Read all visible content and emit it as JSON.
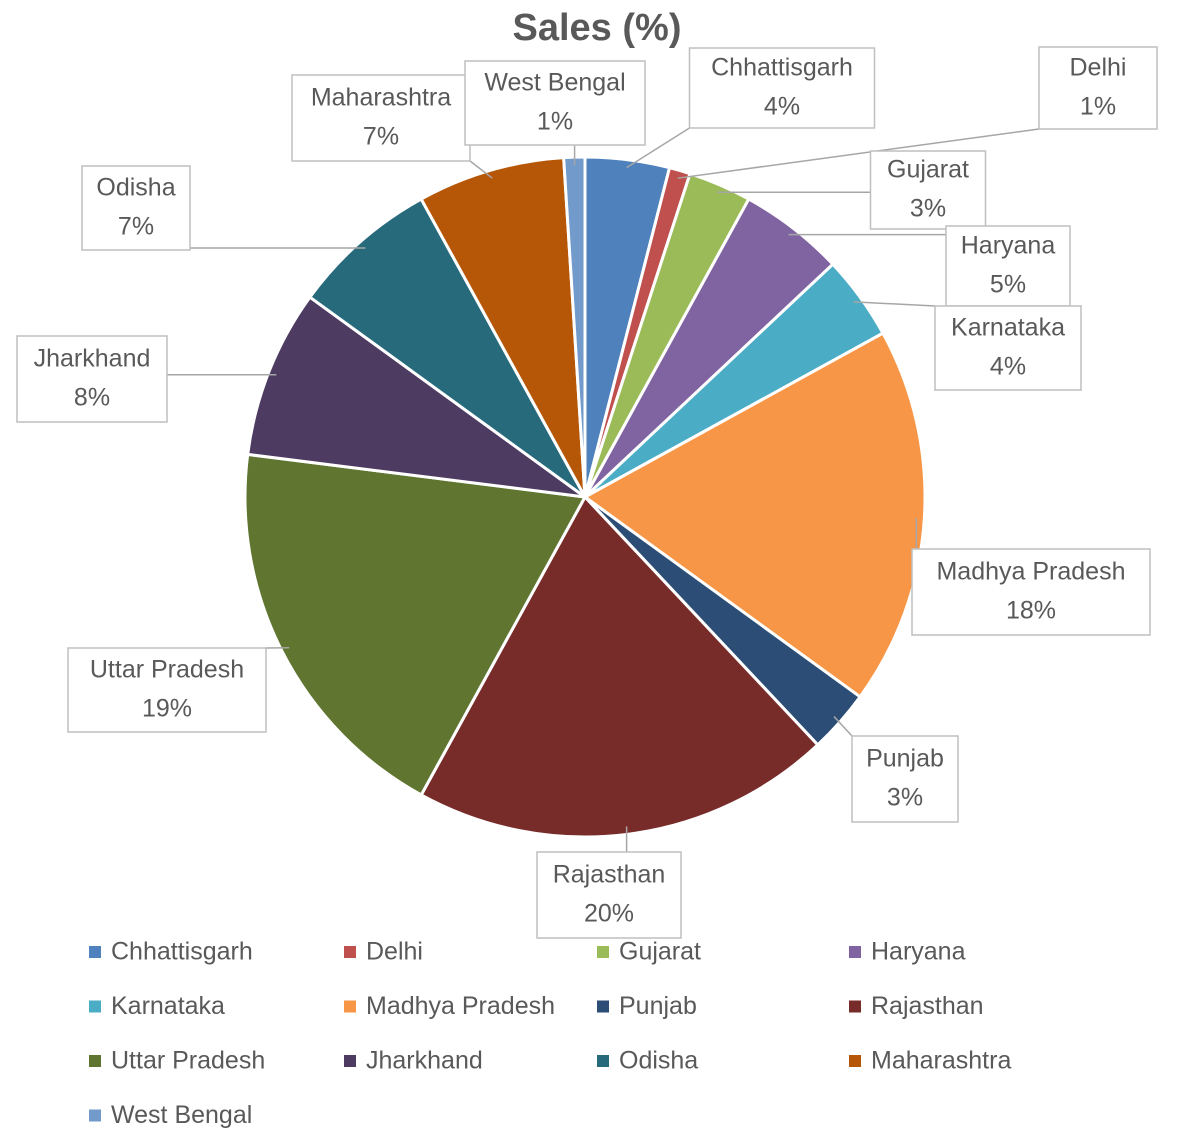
{
  "chart_data": {
    "type": "pie",
    "title": "Sales (%)",
    "categories": [
      "Chhattisgarh",
      "Delhi",
      "Gujarat",
      "Haryana",
      "Karnataka",
      "Madhya Pradesh",
      "Punjab",
      "Rajasthan",
      "Uttar Pradesh",
      "Jharkhand",
      "Odisha",
      "Maharashtra",
      "West Bengal"
    ],
    "values": [
      4,
      1,
      3,
      5,
      4,
      18,
      3,
      20,
      19,
      8,
      7,
      7,
      1
    ],
    "value_labels": [
      "4%",
      "1%",
      "3%",
      "5%",
      "4%",
      "18%",
      "3%",
      "20%",
      "19%",
      "8%",
      "7%",
      "7%",
      "1%"
    ],
    "colors": [
      "#4f81bd",
      "#c0504d",
      "#9bbb59",
      "#8064a2",
      "#4bacc6",
      "#f79646",
      "#2c4d75",
      "#772c2a",
      "#5f7530",
      "#4d3b62",
      "#276a7c",
      "#b65708",
      "#729aca"
    ],
    "legend": "bottom"
  }
}
